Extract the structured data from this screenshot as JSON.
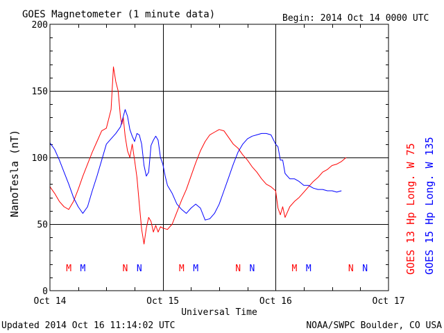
{
  "chart_data": {
    "type": "line",
    "title": "GOES Magnetometer (1 minute data)",
    "begin_label": "Begin:  2014 Oct 14 0000 UTC",
    "xlabel": "Universal Time",
    "ylabel": "NanoTesla (nT)",
    "ylim": [
      0,
      200
    ],
    "yticks": [
      0,
      50,
      100,
      150,
      200
    ],
    "xlim_hours": [
      0,
      72
    ],
    "x_unit": "hours since 2014 Oct 14 0000 UTC",
    "xticks": [
      {
        "hour": 0,
        "label": "Oct 14"
      },
      {
        "hour": 24,
        "label": "Oct 15"
      },
      {
        "hour": 48,
        "label": "Oct 16"
      },
      {
        "hour": 72,
        "label": "Oct 17"
      }
    ],
    "grid": true,
    "series": [
      {
        "name": "GOES 13 Hp  Long. W 75",
        "color": "#ff0000",
        "x": [
          0,
          1,
          2,
          3,
          4,
          5,
          6,
          7,
          8,
          9,
          10,
          11,
          12,
          13,
          13.5,
          14,
          14.5,
          15,
          15.3,
          15.6,
          16,
          16.5,
          17,
          17.5,
          18,
          18.5,
          19,
          19.5,
          20,
          20.5,
          21,
          21.5,
          22,
          22.5,
          23,
          23.5,
          24,
          25,
          26,
          27,
          28,
          29,
          30,
          31,
          32,
          33,
          34,
          35,
          36,
          37,
          38,
          39,
          40,
          41,
          42,
          43,
          44,
          45,
          46,
          47,
          48,
          48.5,
          49,
          49.5,
          50,
          51,
          52,
          53,
          54,
          55,
          56,
          57,
          58,
          59,
          60,
          61,
          62,
          63
        ],
        "y": [
          78,
          73,
          67,
          63,
          61,
          67,
          76,
          86,
          95,
          104,
          112,
          120,
          122,
          136,
          168,
          157,
          150,
          130,
          125,
          130,
          116,
          105,
          100,
          110,
          98,
          85,
          65,
          46,
          35,
          47,
          55,
          52,
          44,
          49,
          44,
          48,
          47,
          46,
          50,
          59,
          68,
          76,
          86,
          96,
          105,
          112,
          117,
          119,
          121,
          120,
          115,
          110,
          107,
          102,
          98,
          93,
          89,
          84,
          80,
          78,
          75,
          62,
          57,
          63,
          55,
          63,
          67,
          70,
          74,
          78,
          82,
          85,
          89,
          91,
          94,
          95,
          97,
          100
        ]
      },
      {
        "name": "GOES 15 Hp  Long. W 135",
        "color": "#0000ff",
        "x": [
          0,
          1,
          2,
          3,
          4,
          5,
          6,
          7,
          8,
          9,
          10,
          11,
          12,
          13,
          14,
          15,
          16,
          16.5,
          17,
          17.5,
          18,
          18.5,
          19,
          19.5,
          20,
          20.5,
          21,
          21.5,
          22,
          22.5,
          23,
          23.5,
          24,
          24.5,
          25,
          26,
          27,
          28,
          29,
          30,
          31,
          32,
          33,
          34,
          35,
          36,
          37,
          38,
          39,
          40,
          41,
          42,
          43,
          44,
          45,
          46,
          47,
          48,
          48.5,
          49,
          49.5,
          50,
          50.5,
          51,
          52,
          53,
          54,
          55,
          56,
          57,
          58,
          59,
          60,
          61,
          62
        ],
        "y": [
          111,
          106,
          98,
          89,
          80,
          70,
          63,
          58,
          63,
          75,
          86,
          98,
          110,
          114,
          118,
          123,
          136,
          131,
          121,
          116,
          112,
          118,
          117,
          110,
          94,
          86,
          89,
          109,
          113,
          116,
          113,
          100,
          95,
          86,
          79,
          73,
          65,
          61,
          58,
          62,
          65,
          62,
          53,
          54,
          58,
          65,
          75,
          85,
          95,
          104,
          110,
          114,
          116,
          117,
          118,
          118,
          117,
          110,
          108,
          98,
          98,
          88,
          86,
          84,
          84,
          82,
          79,
          79,
          77,
          76,
          76,
          75,
          75,
          74,
          75
        ]
      }
    ],
    "marks": [
      {
        "hour": 4,
        "label": "M",
        "color": "#ff0000"
      },
      {
        "hour": 7,
        "label": "M",
        "color": "#0000ff"
      },
      {
        "hour": 16,
        "label": "N",
        "color": "#ff0000"
      },
      {
        "hour": 19,
        "label": "N",
        "color": "#0000ff"
      },
      {
        "hour": 28,
        "label": "M",
        "color": "#ff0000"
      },
      {
        "hour": 31,
        "label": "M",
        "color": "#0000ff"
      },
      {
        "hour": 40,
        "label": "N",
        "color": "#ff0000"
      },
      {
        "hour": 43,
        "label": "N",
        "color": "#0000ff"
      },
      {
        "hour": 52,
        "label": "M",
        "color": "#ff0000"
      },
      {
        "hour": 55,
        "label": "M",
        "color": "#0000ff"
      },
      {
        "hour": 64,
        "label": "N",
        "color": "#ff0000"
      },
      {
        "hour": 67,
        "label": "N",
        "color": "#0000ff"
      }
    ]
  },
  "footer": {
    "updated": "Updated 2014 Oct 16 11:14:02 UTC",
    "source": "NOAA/SWPC Boulder, CO USA"
  }
}
